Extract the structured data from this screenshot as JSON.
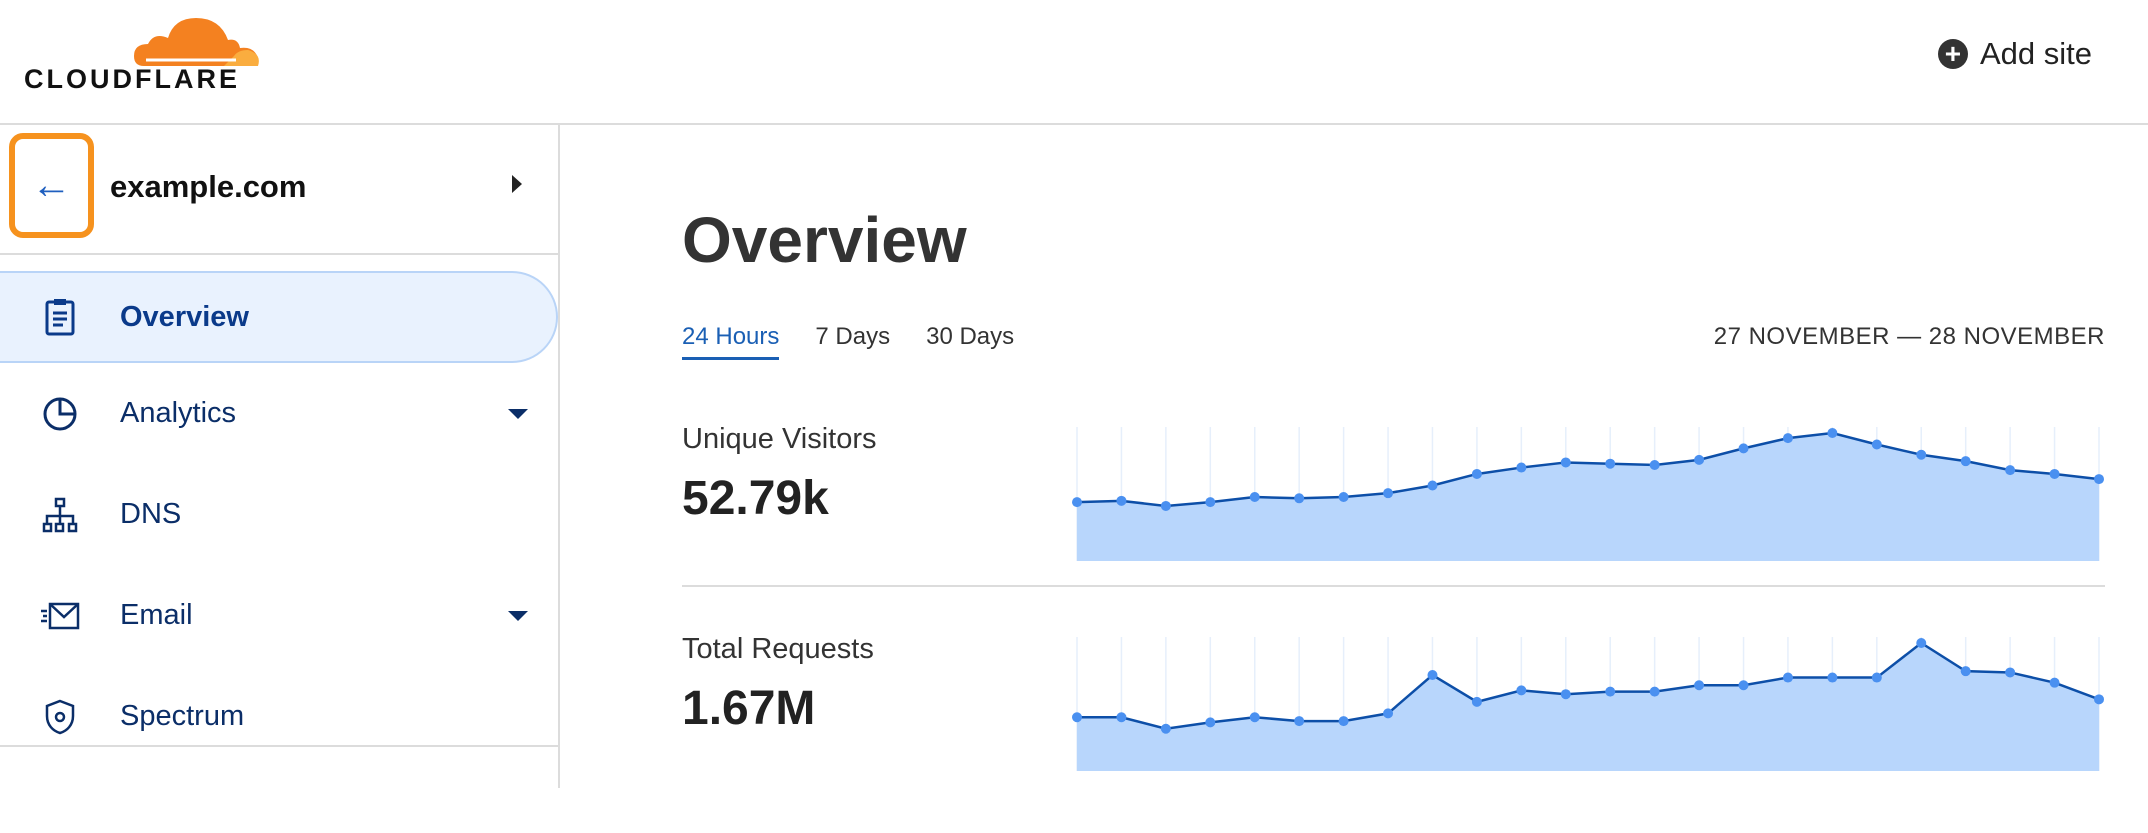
{
  "header": {
    "logo_text": "CLOUDFLARE",
    "add_site_label": "Add site",
    "add_site_icon": "plus-circle-icon"
  },
  "sidebar": {
    "site_name": "example.com",
    "back_icon": "arrow-left-icon",
    "items": [
      {
        "label": "Overview",
        "icon": "clipboard-icon",
        "active": true
      },
      {
        "label": "Analytics",
        "icon": "pie-chart-icon",
        "dropdown": true
      },
      {
        "label": "DNS",
        "icon": "network-icon"
      },
      {
        "label": "Email",
        "icon": "email-icon",
        "dropdown": true
      },
      {
        "label": "Spectrum",
        "icon": "shield-icon"
      }
    ]
  },
  "main": {
    "title": "Overview",
    "tabs": [
      {
        "label": "24 Hours",
        "active": true
      },
      {
        "label": "7 Days"
      },
      {
        "label": "30 Days"
      }
    ],
    "date_range": "27 NOVEMBER — 28 NOVEMBER",
    "metrics": [
      {
        "label": "Unique Visitors",
        "value": "52.79k"
      },
      {
        "label": "Total Requests",
        "value": "1.67M"
      }
    ]
  },
  "colors": {
    "accent": "#f6921e",
    "line": "#0d4fa8",
    "area": "#b8d6fc",
    "point": "#4a90f0",
    "nav_text": "#0b2e68"
  },
  "chart_data": [
    {
      "type": "area",
      "title": "",
      "xlabel": "",
      "ylabel": "",
      "grid": "vertical",
      "ylim": [
        0,
        100
      ],
      "series": [
        {
          "values": [
            46,
            47,
            43,
            46,
            50,
            49,
            50,
            53,
            59,
            68,
            73,
            77,
            76,
            75,
            79,
            88,
            96,
            100,
            91,
            83,
            78,
            71,
            68,
            64
          ]
        }
      ]
    },
    {
      "type": "area",
      "title": "",
      "xlabel": "",
      "ylabel": "",
      "grid": "vertical",
      "ylim": [
        0,
        100
      ],
      "series": [
        {
          "values": [
            42,
            42,
            33,
            38,
            42,
            39,
            39,
            45,
            75,
            54,
            63,
            60,
            62,
            62,
            67,
            67,
            73,
            73,
            73,
            100,
            78,
            77,
            69,
            56
          ]
        }
      ]
    }
  ]
}
